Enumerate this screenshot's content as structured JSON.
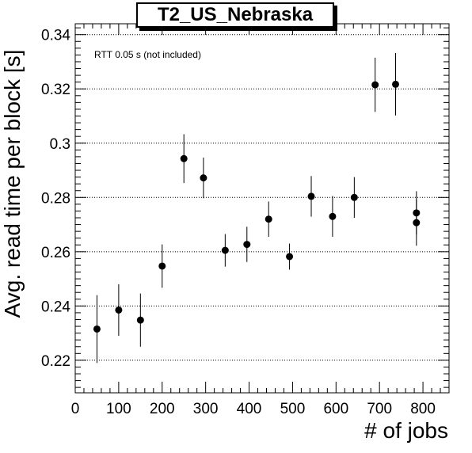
{
  "chart_data": {
    "type": "scatter",
    "title": "T2_US_Nebraska",
    "annotation": "RTT 0.05 s (not included)",
    "xlabel": "# of jobs",
    "ylabel": "Avg. read time per block [s]",
    "xlim": [
      0,
      860
    ],
    "ylim": [
      0.208,
      0.344
    ],
    "xticks": [
      0,
      100,
      200,
      300,
      400,
      500,
      600,
      700,
      800
    ],
    "yticks": [
      0.22,
      0.24,
      0.26,
      0.28,
      0.3,
      0.32,
      0.34
    ],
    "ytick_labels": [
      "0.22",
      "0.24",
      "0.26",
      "0.28",
      "0.3",
      "0.32",
      "0.34"
    ],
    "grid": "horizontal dotted",
    "marker_color": "#000000",
    "points": [
      {
        "x": 50,
        "y": 0.2315,
        "err": 0.0125
      },
      {
        "x": 100,
        "y": 0.2385,
        "err": 0.0095
      },
      {
        "x": 150,
        "y": 0.2348,
        "err": 0.0098
      },
      {
        "x": 200,
        "y": 0.2547,
        "err": 0.008
      },
      {
        "x": 250,
        "y": 0.2943,
        "err": 0.009
      },
      {
        "x": 295,
        "y": 0.2872,
        "err": 0.0075
      },
      {
        "x": 345,
        "y": 0.2605,
        "err": 0.006
      },
      {
        "x": 395,
        "y": 0.2627,
        "err": 0.0065
      },
      {
        "x": 445,
        "y": 0.272,
        "err": 0.0065
      },
      {
        "x": 493,
        "y": 0.2582,
        "err": 0.0048
      },
      {
        "x": 543,
        "y": 0.2804,
        "err": 0.0075
      },
      {
        "x": 592,
        "y": 0.273,
        "err": 0.0075
      },
      {
        "x": 642,
        "y": 0.28,
        "err": 0.0075
      },
      {
        "x": 690,
        "y": 0.3215,
        "err": 0.01
      },
      {
        "x": 737,
        "y": 0.3217,
        "err": 0.0115
      },
      {
        "x": 785,
        "y": 0.2743,
        "err": 0.008
      },
      {
        "x": 785,
        "y": 0.2707,
        "err": 0.0085
      }
    ]
  }
}
